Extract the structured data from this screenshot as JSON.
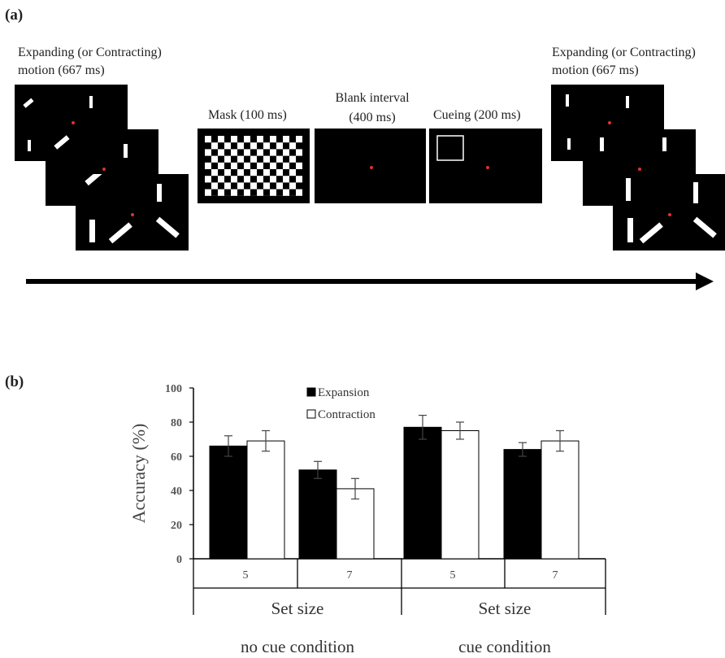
{
  "panel_a": {
    "label": "(a)",
    "first_motion_caption": [
      "Expanding  (or Contracting)",
      "motion (667 ms)"
    ],
    "mask_caption": "Mask (100 ms)",
    "blank_caption": [
      "Blank interval",
      "(400 ms)"
    ],
    "cue_caption": "Cueing (200 ms)",
    "second_motion_caption": [
      "Expanding  (or Contracting)",
      "motion (667 ms)"
    ],
    "colors": {
      "screen": "#000000",
      "fixation": "#e03030",
      "bar": "#ffffff"
    }
  },
  "panel_b": {
    "label": "(b)"
  },
  "chart_data": {
    "type": "bar",
    "ylabel": "Accuracy (%)",
    "ylim": [
      0,
      100
    ],
    "yticks": [
      0,
      20,
      40,
      60,
      80,
      100
    ],
    "categories": [
      "5",
      "7",
      "5",
      "7"
    ],
    "group_labels": [
      "Set size",
      "Set size"
    ],
    "condition_labels": [
      "no cue condition",
      "cue condition"
    ],
    "legend_position": "top-center",
    "grid": false,
    "series": [
      {
        "name": "Expansion",
        "color": "#000000",
        "values": [
          66,
          52,
          77,
          64
        ],
        "errors": [
          6,
          5,
          7,
          4
        ]
      },
      {
        "name": "Contraction",
        "color": "#ffffff",
        "values": [
          69,
          41,
          75,
          69
        ],
        "errors": [
          6,
          6,
          5,
          6
        ]
      }
    ]
  }
}
